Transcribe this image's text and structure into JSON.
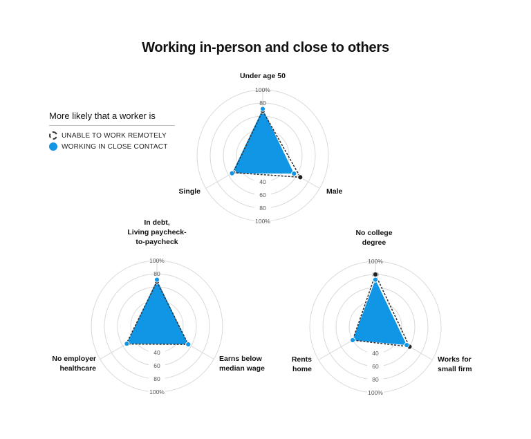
{
  "title": "Working in-person and close to others",
  "legend": {
    "title": "More likely that a worker is",
    "items": [
      {
        "label": "UNABLE TO WORK REMOTELY",
        "style": "dashed",
        "color": "#333333"
      },
      {
        "label": "WORKING IN CLOSE CONTACT",
        "style": "filled",
        "color": "#1196e6"
      }
    ]
  },
  "ring_labels_top": [
    "100%",
    "80"
  ],
  "ring_labels_bottom": [
    "40",
    "60",
    "80",
    "100%"
  ],
  "chart_data": [
    {
      "type": "radar",
      "axes": [
        "Under age 50",
        "Male",
        "Single"
      ],
      "series": [
        {
          "name": "UNABLE TO WORK REMOTELY",
          "values": [
            68,
            66,
            52
          ]
        },
        {
          "name": "WORKING IN CLOSE CONTACT",
          "values": [
            71,
            55,
            54
          ]
        }
      ],
      "rings": [
        20,
        40,
        60,
        80,
        100
      ]
    },
    {
      "type": "radar",
      "axes": [
        "In debt,\nLiving paycheck-\nto-paycheck",
        "Earns below\nmedian wage",
        "No employer\nhealthcare"
      ],
      "series": [
        {
          "name": "UNABLE TO WORK REMOTELY",
          "values": [
            68,
            55,
            54
          ]
        },
        {
          "name": "WORKING IN CLOSE CONTACT",
          "values": [
            71,
            55,
            53
          ]
        }
      ],
      "rings": [
        20,
        40,
        60,
        80,
        100
      ]
    },
    {
      "type": "radar",
      "axes": [
        "No college\ndegree",
        "Works for\nsmall firm",
        "Rents\nhome"
      ],
      "series": [
        {
          "name": "UNABLE TO WORK REMOTELY",
          "values": [
            80,
            60,
            40
          ]
        },
        {
          "name": "WORKING IN CLOSE CONTACT",
          "values": [
            72,
            55,
            40
          ]
        }
      ],
      "rings": [
        20,
        40,
        60,
        80,
        100
      ]
    }
  ]
}
